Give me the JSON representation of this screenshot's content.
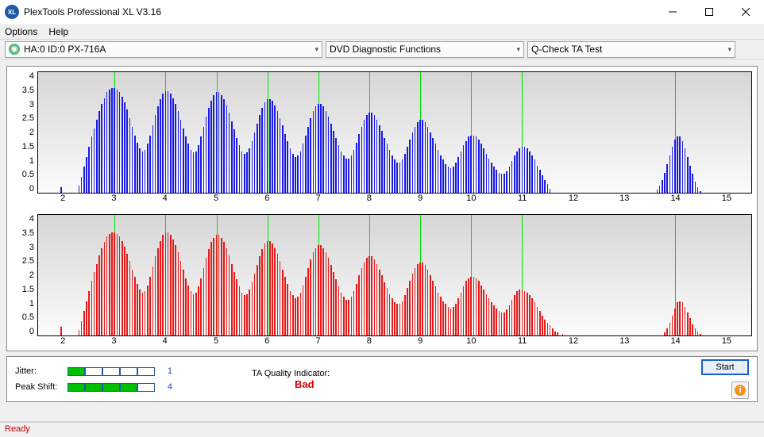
{
  "title": "PlexTools Professional XL V3.16",
  "menubar": {
    "options": "Options",
    "help": "Help"
  },
  "toolbar": {
    "drive": "HA:0 ID:0  PX-716A",
    "mode": "DVD Diagnostic Functions",
    "test": "Q-Check TA Test"
  },
  "chart_top": {
    "bar_color": "#1a1ae6",
    "y_ticks": [
      "4",
      "3.5",
      "3",
      "2.5",
      "2",
      "1.5",
      "1",
      "0.5",
      "0"
    ],
    "x_ticks": [
      2,
      3,
      4,
      5,
      6,
      7,
      8,
      9,
      10,
      11,
      12,
      13,
      14,
      15
    ],
    "x_min": 1.5,
    "x_max": 15.5,
    "y_max": 4.2,
    "bar_w": 0.025,
    "markers": [
      3,
      4,
      5,
      6,
      7,
      8,
      9,
      10,
      11,
      14
    ],
    "series": [
      [
        1.95,
        0.2
      ],
      [
        2.3,
        0.25
      ],
      [
        2.35,
        0.55
      ],
      [
        2.4,
        0.9
      ],
      [
        2.45,
        1.25
      ],
      [
        2.5,
        1.6
      ],
      [
        2.55,
        1.95
      ],
      [
        2.6,
        2.25
      ],
      [
        2.65,
        2.55
      ],
      [
        2.7,
        2.85
      ],
      [
        2.75,
        3.1
      ],
      [
        2.8,
        3.3
      ],
      [
        2.85,
        3.5
      ],
      [
        2.9,
        3.6
      ],
      [
        2.95,
        3.65
      ],
      [
        3.0,
        3.65
      ],
      [
        3.05,
        3.6
      ],
      [
        3.1,
        3.5
      ],
      [
        3.15,
        3.35
      ],
      [
        3.2,
        3.15
      ],
      [
        3.25,
        2.9
      ],
      [
        3.3,
        2.6
      ],
      [
        3.35,
        2.3
      ],
      [
        3.4,
        2.0
      ],
      [
        3.45,
        1.75
      ],
      [
        3.5,
        1.55
      ],
      [
        3.55,
        1.45
      ],
      [
        3.6,
        1.5
      ],
      [
        3.65,
        1.7
      ],
      [
        3.7,
        2.0
      ],
      [
        3.75,
        2.35
      ],
      [
        3.8,
        2.7
      ],
      [
        3.85,
        3.0
      ],
      [
        3.9,
        3.25
      ],
      [
        3.95,
        3.45
      ],
      [
        4.0,
        3.55
      ],
      [
        4.05,
        3.55
      ],
      [
        4.1,
        3.45
      ],
      [
        4.15,
        3.3
      ],
      [
        4.2,
        3.1
      ],
      [
        4.25,
        2.85
      ],
      [
        4.3,
        2.55
      ],
      [
        4.35,
        2.25
      ],
      [
        4.4,
        1.95
      ],
      [
        4.45,
        1.7
      ],
      [
        4.5,
        1.5
      ],
      [
        4.55,
        1.4
      ],
      [
        4.6,
        1.45
      ],
      [
        4.65,
        1.65
      ],
      [
        4.7,
        1.95
      ],
      [
        4.75,
        2.3
      ],
      [
        4.8,
        2.65
      ],
      [
        4.85,
        2.95
      ],
      [
        4.9,
        3.2
      ],
      [
        4.95,
        3.4
      ],
      [
        5.0,
        3.5
      ],
      [
        5.05,
        3.5
      ],
      [
        5.1,
        3.4
      ],
      [
        5.15,
        3.25
      ],
      [
        5.2,
        3.05
      ],
      [
        5.25,
        2.8
      ],
      [
        5.3,
        2.5
      ],
      [
        5.35,
        2.2
      ],
      [
        5.4,
        1.9
      ],
      [
        5.45,
        1.65
      ],
      [
        5.5,
        1.45
      ],
      [
        5.55,
        1.35
      ],
      [
        5.6,
        1.4
      ],
      [
        5.65,
        1.55
      ],
      [
        5.7,
        1.8
      ],
      [
        5.75,
        2.1
      ],
      [
        5.8,
        2.4
      ],
      [
        5.85,
        2.7
      ],
      [
        5.9,
        2.95
      ],
      [
        5.95,
        3.15
      ],
      [
        6.0,
        3.25
      ],
      [
        6.05,
        3.25
      ],
      [
        6.1,
        3.2
      ],
      [
        6.15,
        3.05
      ],
      [
        6.2,
        2.85
      ],
      [
        6.25,
        2.6
      ],
      [
        6.3,
        2.35
      ],
      [
        6.35,
        2.05
      ],
      [
        6.4,
        1.8
      ],
      [
        6.45,
        1.55
      ],
      [
        6.5,
        1.35
      ],
      [
        6.55,
        1.25
      ],
      [
        6.6,
        1.3
      ],
      [
        6.65,
        1.45
      ],
      [
        6.7,
        1.7
      ],
      [
        6.75,
        2.0
      ],
      [
        6.8,
        2.3
      ],
      [
        6.85,
        2.6
      ],
      [
        6.9,
        2.85
      ],
      [
        6.95,
        3.0
      ],
      [
        7.0,
        3.1
      ],
      [
        7.05,
        3.1
      ],
      [
        7.1,
        3.0
      ],
      [
        7.15,
        2.85
      ],
      [
        7.2,
        2.65
      ],
      [
        7.25,
        2.4
      ],
      [
        7.3,
        2.15
      ],
      [
        7.35,
        1.9
      ],
      [
        7.4,
        1.65
      ],
      [
        7.45,
        1.45
      ],
      [
        7.5,
        1.3
      ],
      [
        7.55,
        1.2
      ],
      [
        7.6,
        1.2
      ],
      [
        7.65,
        1.3
      ],
      [
        7.7,
        1.5
      ],
      [
        7.75,
        1.75
      ],
      [
        7.8,
        2.05
      ],
      [
        7.85,
        2.3
      ],
      [
        7.9,
        2.55
      ],
      [
        7.95,
        2.7
      ],
      [
        8.0,
        2.8
      ],
      [
        8.05,
        2.8
      ],
      [
        8.1,
        2.7
      ],
      [
        8.15,
        2.55
      ],
      [
        8.2,
        2.35
      ],
      [
        8.25,
        2.15
      ],
      [
        8.3,
        1.9
      ],
      [
        8.35,
        1.7
      ],
      [
        8.4,
        1.5
      ],
      [
        8.45,
        1.3
      ],
      [
        8.5,
        1.15
      ],
      [
        8.55,
        1.05
      ],
      [
        8.6,
        1.05
      ],
      [
        8.65,
        1.15
      ],
      [
        8.7,
        1.35
      ],
      [
        8.75,
        1.6
      ],
      [
        8.8,
        1.85
      ],
      [
        8.85,
        2.1
      ],
      [
        8.9,
        2.3
      ],
      [
        8.95,
        2.45
      ],
      [
        9.0,
        2.55
      ],
      [
        9.05,
        2.55
      ],
      [
        9.1,
        2.45
      ],
      [
        9.15,
        2.3
      ],
      [
        9.2,
        2.1
      ],
      [
        9.25,
        1.9
      ],
      [
        9.3,
        1.7
      ],
      [
        9.35,
        1.5
      ],
      [
        9.4,
        1.3
      ],
      [
        9.45,
        1.15
      ],
      [
        9.5,
        1.0
      ],
      [
        9.55,
        0.9
      ],
      [
        9.6,
        0.85
      ],
      [
        9.65,
        0.9
      ],
      [
        9.7,
        1.05
      ],
      [
        9.75,
        1.25
      ],
      [
        9.8,
        1.45
      ],
      [
        9.85,
        1.65
      ],
      [
        9.9,
        1.8
      ],
      [
        9.95,
        1.95
      ],
      [
        10.0,
        2.0
      ],
      [
        10.05,
        2.0
      ],
      [
        10.1,
        1.95
      ],
      [
        10.15,
        1.85
      ],
      [
        10.2,
        1.7
      ],
      [
        10.25,
        1.55
      ],
      [
        10.3,
        1.35
      ],
      [
        10.35,
        1.2
      ],
      [
        10.4,
        1.05
      ],
      [
        10.45,
        0.9
      ],
      [
        10.5,
        0.8
      ],
      [
        10.55,
        0.7
      ],
      [
        10.6,
        0.65
      ],
      [
        10.65,
        0.65
      ],
      [
        10.7,
        0.75
      ],
      [
        10.75,
        0.9
      ],
      [
        10.8,
        1.1
      ],
      [
        10.85,
        1.3
      ],
      [
        10.9,
        1.45
      ],
      [
        10.95,
        1.55
      ],
      [
        11.0,
        1.6
      ],
      [
        11.05,
        1.6
      ],
      [
        11.1,
        1.55
      ],
      [
        11.15,
        1.45
      ],
      [
        11.2,
        1.3
      ],
      [
        11.25,
        1.15
      ],
      [
        11.3,
        0.95
      ],
      [
        11.35,
        0.8
      ],
      [
        11.4,
        0.6
      ],
      [
        11.45,
        0.45
      ],
      [
        11.5,
        0.3
      ],
      [
        11.55,
        0.15
      ],
      [
        13.65,
        0.1
      ],
      [
        13.7,
        0.25
      ],
      [
        13.75,
        0.45
      ],
      [
        13.8,
        0.7
      ],
      [
        13.85,
        1.0
      ],
      [
        13.9,
        1.3
      ],
      [
        13.95,
        1.6
      ],
      [
        14.0,
        1.85
      ],
      [
        14.05,
        1.95
      ],
      [
        14.1,
        1.95
      ],
      [
        14.15,
        1.8
      ],
      [
        14.2,
        1.55
      ],
      [
        14.25,
        1.25
      ],
      [
        14.3,
        0.95
      ],
      [
        14.35,
        0.65
      ],
      [
        14.4,
        0.4
      ],
      [
        14.45,
        0.2
      ],
      [
        14.5,
        0.05
      ]
    ]
  },
  "chart_bottom": {
    "bar_color": "#e61a1a",
    "y_ticks": [
      "4",
      "3.5",
      "3",
      "2.5",
      "2",
      "1.5",
      "1",
      "0.5",
      "0"
    ],
    "x_ticks": [
      2,
      3,
      4,
      5,
      6,
      7,
      8,
      9,
      10,
      11,
      12,
      13,
      14,
      15
    ],
    "x_min": 1.5,
    "x_max": 15.5,
    "y_max": 4.2,
    "bar_w": 0.025,
    "markers": [
      3,
      4,
      5,
      6,
      7,
      8,
      9,
      10,
      11,
      14
    ],
    "series": [
      [
        1.95,
        0.3
      ],
      [
        2.3,
        0.2
      ],
      [
        2.35,
        0.5
      ],
      [
        2.4,
        0.85
      ],
      [
        2.45,
        1.2
      ],
      [
        2.5,
        1.55
      ],
      [
        2.55,
        1.9
      ],
      [
        2.6,
        2.2
      ],
      [
        2.65,
        2.5
      ],
      [
        2.7,
        2.8
      ],
      [
        2.75,
        3.05
      ],
      [
        2.8,
        3.25
      ],
      [
        2.85,
        3.45
      ],
      [
        2.9,
        3.55
      ],
      [
        2.95,
        3.6
      ],
      [
        3.0,
        3.6
      ],
      [
        3.05,
        3.55
      ],
      [
        3.1,
        3.45
      ],
      [
        3.15,
        3.3
      ],
      [
        3.2,
        3.1
      ],
      [
        3.25,
        2.85
      ],
      [
        3.3,
        2.6
      ],
      [
        3.35,
        2.3
      ],
      [
        3.4,
        2.05
      ],
      [
        3.45,
        1.8
      ],
      [
        3.5,
        1.6
      ],
      [
        3.55,
        1.5
      ],
      [
        3.6,
        1.55
      ],
      [
        3.65,
        1.75
      ],
      [
        3.7,
        2.05
      ],
      [
        3.75,
        2.4
      ],
      [
        3.8,
        2.75
      ],
      [
        3.85,
        3.05
      ],
      [
        3.9,
        3.3
      ],
      [
        3.95,
        3.5
      ],
      [
        4.0,
        3.6
      ],
      [
        4.05,
        3.6
      ],
      [
        4.1,
        3.5
      ],
      [
        4.15,
        3.35
      ],
      [
        4.2,
        3.15
      ],
      [
        4.25,
        2.9
      ],
      [
        4.3,
        2.6
      ],
      [
        4.35,
        2.3
      ],
      [
        4.4,
        2.0
      ],
      [
        4.45,
        1.75
      ],
      [
        4.5,
        1.55
      ],
      [
        4.55,
        1.45
      ],
      [
        4.6,
        1.5
      ],
      [
        4.65,
        1.7
      ],
      [
        4.7,
        2.0
      ],
      [
        4.75,
        2.35
      ],
      [
        4.8,
        2.7
      ],
      [
        4.85,
        3.0
      ],
      [
        4.9,
        3.25
      ],
      [
        4.95,
        3.4
      ],
      [
        5.0,
        3.5
      ],
      [
        5.05,
        3.5
      ],
      [
        5.1,
        3.4
      ],
      [
        5.15,
        3.25
      ],
      [
        5.2,
        3.05
      ],
      [
        5.25,
        2.8
      ],
      [
        5.3,
        2.5
      ],
      [
        5.35,
        2.2
      ],
      [
        5.4,
        1.95
      ],
      [
        5.45,
        1.7
      ],
      [
        5.5,
        1.5
      ],
      [
        5.55,
        1.4
      ],
      [
        5.6,
        1.45
      ],
      [
        5.65,
        1.6
      ],
      [
        5.7,
        1.85
      ],
      [
        5.75,
        2.15
      ],
      [
        5.8,
        2.45
      ],
      [
        5.85,
        2.75
      ],
      [
        5.9,
        3.0
      ],
      [
        5.95,
        3.2
      ],
      [
        6.0,
        3.3
      ],
      [
        6.05,
        3.3
      ],
      [
        6.1,
        3.2
      ],
      [
        6.15,
        3.05
      ],
      [
        6.2,
        2.85
      ],
      [
        6.25,
        2.6
      ],
      [
        6.3,
        2.3
      ],
      [
        6.35,
        2.05
      ],
      [
        6.4,
        1.8
      ],
      [
        6.45,
        1.55
      ],
      [
        6.5,
        1.4
      ],
      [
        6.55,
        1.3
      ],
      [
        6.6,
        1.35
      ],
      [
        6.65,
        1.5
      ],
      [
        6.7,
        1.75
      ],
      [
        6.75,
        2.05
      ],
      [
        6.8,
        2.35
      ],
      [
        6.85,
        2.65
      ],
      [
        6.9,
        2.9
      ],
      [
        6.95,
        3.05
      ],
      [
        7.0,
        3.15
      ],
      [
        7.05,
        3.15
      ],
      [
        7.1,
        3.05
      ],
      [
        7.15,
        2.9
      ],
      [
        7.2,
        2.7
      ],
      [
        7.25,
        2.45
      ],
      [
        7.3,
        2.2
      ],
      [
        7.35,
        1.95
      ],
      [
        7.4,
        1.7
      ],
      [
        7.45,
        1.5
      ],
      [
        7.5,
        1.35
      ],
      [
        7.55,
        1.25
      ],
      [
        7.6,
        1.25
      ],
      [
        7.65,
        1.35
      ],
      [
        7.7,
        1.55
      ],
      [
        7.75,
        1.8
      ],
      [
        7.8,
        2.1
      ],
      [
        7.85,
        2.35
      ],
      [
        7.9,
        2.55
      ],
      [
        7.95,
        2.7
      ],
      [
        8.0,
        2.75
      ],
      [
        8.05,
        2.75
      ],
      [
        8.1,
        2.65
      ],
      [
        8.15,
        2.5
      ],
      [
        8.2,
        2.3
      ],
      [
        8.25,
        2.1
      ],
      [
        8.3,
        1.85
      ],
      [
        8.35,
        1.65
      ],
      [
        8.4,
        1.45
      ],
      [
        8.45,
        1.3
      ],
      [
        8.5,
        1.15
      ],
      [
        8.55,
        1.1
      ],
      [
        8.6,
        1.1
      ],
      [
        8.65,
        1.2
      ],
      [
        8.7,
        1.4
      ],
      [
        8.75,
        1.65
      ],
      [
        8.8,
        1.9
      ],
      [
        8.85,
        2.15
      ],
      [
        8.9,
        2.35
      ],
      [
        8.95,
        2.5
      ],
      [
        9.0,
        2.55
      ],
      [
        9.05,
        2.55
      ],
      [
        9.1,
        2.45
      ],
      [
        9.15,
        2.3
      ],
      [
        9.2,
        2.1
      ],
      [
        9.25,
        1.9
      ],
      [
        9.3,
        1.7
      ],
      [
        9.35,
        1.5
      ],
      [
        9.4,
        1.35
      ],
      [
        9.45,
        1.2
      ],
      [
        9.5,
        1.1
      ],
      [
        9.55,
        1.0
      ],
      [
        9.6,
        0.95
      ],
      [
        9.65,
        1.0
      ],
      [
        9.7,
        1.1
      ],
      [
        9.75,
        1.3
      ],
      [
        9.8,
        1.5
      ],
      [
        9.85,
        1.7
      ],
      [
        9.9,
        1.9
      ],
      [
        9.95,
        2.0
      ],
      [
        10.0,
        2.05
      ],
      [
        10.05,
        2.05
      ],
      [
        10.1,
        2.0
      ],
      [
        10.15,
        1.9
      ],
      [
        10.2,
        1.75
      ],
      [
        10.25,
        1.6
      ],
      [
        10.3,
        1.45
      ],
      [
        10.35,
        1.3
      ],
      [
        10.4,
        1.15
      ],
      [
        10.45,
        1.05
      ],
      [
        10.5,
        0.95
      ],
      [
        10.55,
        0.85
      ],
      [
        10.6,
        0.8
      ],
      [
        10.65,
        0.8
      ],
      [
        10.7,
        0.9
      ],
      [
        10.75,
        1.05
      ],
      [
        10.8,
        1.25
      ],
      [
        10.85,
        1.4
      ],
      [
        10.9,
        1.55
      ],
      [
        10.95,
        1.6
      ],
      [
        11.0,
        1.6
      ],
      [
        11.05,
        1.55
      ],
      [
        11.1,
        1.5
      ],
      [
        11.15,
        1.4
      ],
      [
        11.2,
        1.3
      ],
      [
        11.25,
        1.15
      ],
      [
        11.3,
        1.0
      ],
      [
        11.35,
        0.85
      ],
      [
        11.4,
        0.7
      ],
      [
        11.45,
        0.55
      ],
      [
        11.5,
        0.45
      ],
      [
        11.55,
        0.35
      ],
      [
        11.6,
        0.25
      ],
      [
        11.65,
        0.15
      ],
      [
        11.7,
        0.1
      ],
      [
        11.8,
        0.05
      ],
      [
        13.8,
        0.1
      ],
      [
        13.85,
        0.25
      ],
      [
        13.9,
        0.45
      ],
      [
        13.95,
        0.7
      ],
      [
        14.0,
        0.95
      ],
      [
        14.05,
        1.15
      ],
      [
        14.1,
        1.2
      ],
      [
        14.15,
        1.15
      ],
      [
        14.2,
        1.0
      ],
      [
        14.25,
        0.8
      ],
      [
        14.3,
        0.6
      ],
      [
        14.35,
        0.4
      ],
      [
        14.4,
        0.25
      ],
      [
        14.45,
        0.15
      ],
      [
        14.5,
        0.05
      ]
    ]
  },
  "quality": {
    "jitter": {
      "label": "Jitter:",
      "value": "1",
      "bars_on": 1
    },
    "peakshift": {
      "label": "Peak Shift:",
      "value": "4",
      "bars_on": 4
    },
    "ta_label": "TA Quality Indicator:",
    "ta_value": "Bad"
  },
  "buttons": {
    "start": "Start"
  },
  "status": "Ready"
}
